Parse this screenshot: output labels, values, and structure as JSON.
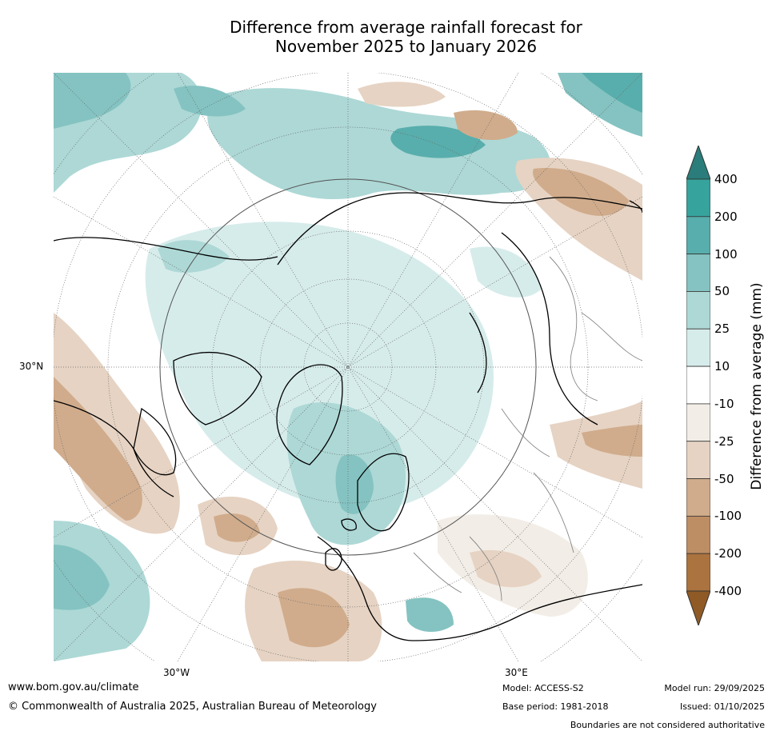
{
  "title": {
    "line1": "Difference from average rainfall forecast for",
    "line2": "November 2025 to January 2026"
  },
  "map": {
    "projection": "north polar stereographic",
    "lat_label": "30°N",
    "lon_labels": [
      "30°W",
      "30°E"
    ]
  },
  "colorbar": {
    "title": "Difference from average (mm)",
    "ticks": [
      "400",
      "200",
      "100",
      "50",
      "25",
      "10",
      "-10",
      "-25",
      "-50",
      "-100",
      "-200",
      "-400"
    ],
    "colors": [
      "#2a7d7a",
      "#37a39d",
      "#58aeac",
      "#84c3c1",
      "#add8d6",
      "#d6eceb",
      "#ffffff",
      "#f2ede6",
      "#e6d3c3",
      "#d0ac8c",
      "#bd8e64",
      "#ab733f",
      "#8f5a26"
    ]
  },
  "footer": {
    "website": "www.bom.gov.au/climate",
    "copyright": "© Commonwealth of Australia 2025, Australian Bureau of Meteorology",
    "model": "Model: ACCESS-S2",
    "base_period": "Base period: 1981-2018",
    "model_run": "Model run: 29/09/2025",
    "issued": "Issued: 01/10/2025",
    "disclaimer": "Boundaries are not considered authoritative"
  }
}
